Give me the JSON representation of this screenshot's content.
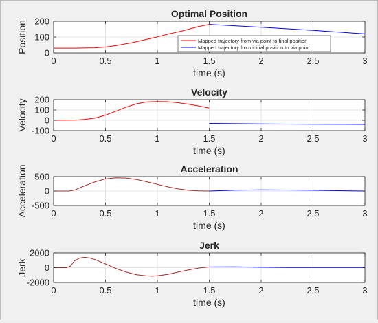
{
  "chart_data": [
    {
      "type": "line",
      "title": "Optimal Position",
      "xlabel": "time (s)",
      "ylabel": "Position",
      "xlim": [
        0,
        3
      ],
      "ylim": [
        0,
        200
      ],
      "xticks": [
        "0",
        "0.5",
        "1",
        "1.5",
        "2",
        "2.5",
        "3"
      ],
      "yticks": [
        "0",
        "100",
        "200"
      ],
      "grid": true,
      "legend": {
        "placement": "center-right",
        "entries": [
          {
            "label": "Mapped trajectory from via point to final position",
            "color": "#ff0000"
          },
          {
            "label": "Mapped trajectory from initial position to via point",
            "color": "#0000ff"
          }
        ]
      },
      "series": [
        {
          "color": "#ff0000",
          "x": [
            0,
            0.2,
            0.4,
            0.5,
            0.6,
            0.75,
            0.9,
            1.0,
            1.1,
            1.25,
            1.4,
            1.5
          ],
          "values": [
            30,
            30,
            32,
            37,
            46,
            64,
            86,
            101,
            118,
            141,
            167,
            180
          ]
        },
        {
          "color": "#0000ff",
          "x": [
            1.5,
            2.0,
            2.5,
            3.0
          ],
          "values": [
            180,
            162,
            142,
            120
          ]
        }
      ]
    },
    {
      "type": "line",
      "title": "Velocity",
      "xlabel": "time (s)",
      "ylabel": "Velocity",
      "xlim": [
        0,
        3
      ],
      "ylim": [
        -100,
        200
      ],
      "xticks": [
        "0",
        "0.5",
        "1",
        "1.5",
        "2",
        "2.5",
        "3"
      ],
      "yticks": [
        "-100",
        "0",
        "100",
        "200"
      ],
      "grid": true,
      "series": [
        {
          "color": "#ff0000",
          "x": [
            0,
            0.2,
            0.3,
            0.4,
            0.5,
            0.6,
            0.7,
            0.8,
            0.9,
            1.0,
            1.1,
            1.2,
            1.3,
            1.4,
            1.5
          ],
          "values": [
            0,
            2,
            8,
            22,
            50,
            88,
            128,
            160,
            178,
            182,
            180,
            170,
            156,
            138,
            118
          ]
        },
        {
          "color": "#0000ff",
          "x": [
            1.5,
            2.0,
            2.5,
            3.0
          ],
          "values": [
            -30,
            -35,
            -38,
            -40
          ]
        }
      ]
    },
    {
      "type": "line",
      "title": "Acceleration",
      "xlabel": "time (s)",
      "ylabel": "Acceleration",
      "xlim": [
        0,
        3
      ],
      "ylim": [
        -500,
        500
      ],
      "xticks": [
        "0",
        "0.5",
        "1",
        "1.5",
        "2",
        "2.5",
        "3"
      ],
      "yticks": [
        "-500",
        "0",
        "500"
      ],
      "grid": true,
      "series": [
        {
          "color": "#a52a2a",
          "x": [
            0,
            0.15,
            0.2,
            0.3,
            0.4,
            0.5,
            0.6,
            0.7,
            0.8,
            0.9,
            1.0,
            1.1,
            1.2,
            1.3,
            1.4,
            1.5
          ],
          "values": [
            0,
            0,
            30,
            180,
            320,
            420,
            460,
            450,
            400,
            320,
            230,
            145,
            75,
            25,
            5,
            0
          ]
        },
        {
          "color": "#0000ff",
          "x": [
            1.5,
            1.75,
            2.0,
            2.25,
            2.5,
            2.75,
            3.0
          ],
          "values": [
            0,
            30,
            40,
            35,
            25,
            12,
            0
          ]
        }
      ]
    },
    {
      "type": "line",
      "title": "Jerk",
      "xlabel": "time (s)",
      "ylabel": "Jerk",
      "xlim": [
        0,
        3
      ],
      "ylim": [
        -2000,
        2000
      ],
      "xticks": [
        "0",
        "0.5",
        "1",
        "1.5",
        "2",
        "2.5",
        "3"
      ],
      "yticks": [
        "-2000",
        "0",
        "2000"
      ],
      "grid": true,
      "series": [
        {
          "color": "#a52a2a",
          "x": [
            0,
            0.12,
            0.16,
            0.2,
            0.25,
            0.3,
            0.35,
            0.4,
            0.5,
            0.6,
            0.7,
            0.8,
            0.9,
            0.95,
            1.0,
            1.1,
            1.2,
            1.3,
            1.4,
            1.5
          ],
          "values": [
            0,
            0,
            200,
            900,
            1300,
            1400,
            1300,
            1100,
            500,
            -100,
            -600,
            -950,
            -1120,
            -1150,
            -1100,
            -900,
            -600,
            -300,
            -50,
            100
          ]
        },
        {
          "color": "#0000ff",
          "x": [
            1.5,
            1.75,
            2.0,
            2.25,
            2.5,
            2.75,
            3.0
          ],
          "values": [
            100,
            110,
            60,
            30,
            15,
            20,
            30
          ]
        }
      ]
    }
  ]
}
